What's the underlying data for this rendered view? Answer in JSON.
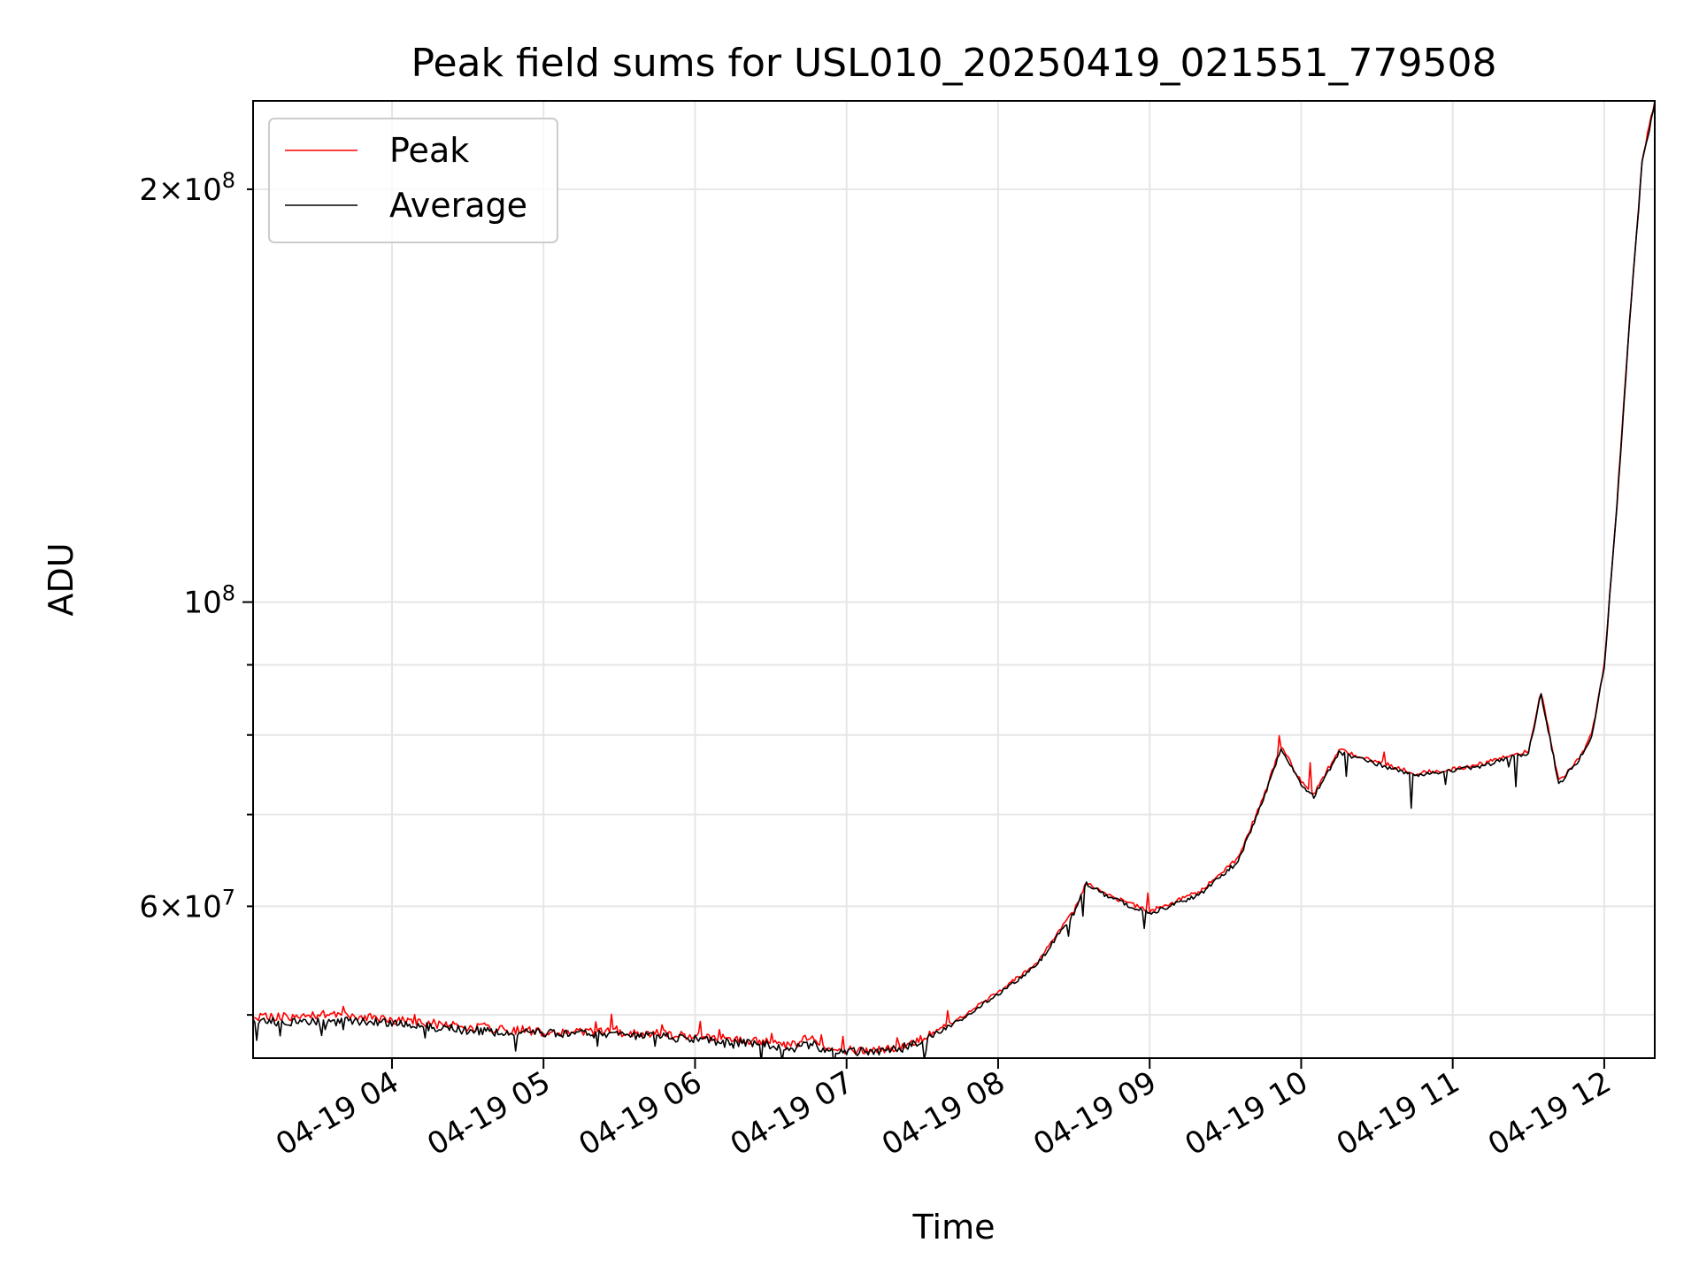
{
  "chart_data": {
    "type": "line",
    "title": "Peak field sums for USL010_20250419_021551_779508",
    "xlabel": "Time",
    "ylabel": "ADU",
    "yscale": "log",
    "grid": true,
    "legend_position": "top-left",
    "x_range": [
      "2025-04-19 03:05",
      "2025-04-19 12:20"
    ],
    "y_range": [
      46500000,
      232000000
    ],
    "x_ticks": [
      {
        "t": "2025-04-19 04:00",
        "label": "04-19 04"
      },
      {
        "t": "2025-04-19 05:00",
        "label": "04-19 05"
      },
      {
        "t": "2025-04-19 06:00",
        "label": "04-19 06"
      },
      {
        "t": "2025-04-19 07:00",
        "label": "04-19 07"
      },
      {
        "t": "2025-04-19 08:00",
        "label": "04-19 08"
      },
      {
        "t": "2025-04-19 09:00",
        "label": "04-19 09"
      },
      {
        "t": "2025-04-19 10:00",
        "label": "04-19 10"
      },
      {
        "t": "2025-04-19 11:00",
        "label": "04-19 11"
      },
      {
        "t": "2025-04-19 12:00",
        "label": "04-19 12"
      }
    ],
    "y_ticks_major": [
      {
        "v": 100000000,
        "base": "10",
        "exp": "8"
      }
    ],
    "y_ticks_minor": [
      {
        "v": 50000000,
        "mant": "",
        "exp": ""
      },
      {
        "v": 60000000,
        "mant": "6",
        "exp": "7"
      },
      {
        "v": 70000000,
        "mant": "",
        "exp": ""
      },
      {
        "v": 80000000,
        "mant": "",
        "exp": ""
      },
      {
        "v": 90000000,
        "mant": "",
        "exp": ""
      },
      {
        "v": 200000000,
        "mant": "2",
        "exp": "8"
      }
    ],
    "series": [
      {
        "name": "Peak",
        "color": "#ff0000",
        "points": [
          [
            "2025-04-19 03:05",
            49800000.0
          ],
          [
            "2025-04-19 03:20",
            49800000.0
          ],
          [
            "2025-04-19 03:30",
            50000000.0
          ],
          [
            "2025-04-19 03:45",
            49900000.0
          ],
          [
            "2025-04-19 04:00",
            49600000.0
          ],
          [
            "2025-04-19 04:20",
            49200000.0
          ],
          [
            "2025-04-19 04:40",
            48800000.0
          ],
          [
            "2025-04-19 05:00",
            48600000.0
          ],
          [
            "2025-04-19 05:20",
            48600000.0
          ],
          [
            "2025-04-19 05:40",
            48500000.0
          ],
          [
            "2025-04-19 06:00",
            48200000.0
          ],
          [
            "2025-04-19 06:20",
            47900000.0
          ],
          [
            "2025-04-19 06:40",
            47500000.0
          ],
          [
            "2025-04-19 06:45",
            48200000.0
          ],
          [
            "2025-04-19 06:50",
            47300000.0
          ],
          [
            "2025-04-19 07:00",
            47100000.0
          ],
          [
            "2025-04-19 07:10",
            47100000.0
          ],
          [
            "2025-04-19 07:20",
            47300000.0
          ],
          [
            "2025-04-19 07:30",
            48000000.0
          ],
          [
            "2025-04-19 07:45",
            49800000.0
          ],
          [
            "2025-04-19 08:00",
            52000000.0
          ],
          [
            "2025-04-19 08:15",
            54500000.0
          ],
          [
            "2025-04-19 08:30",
            59500000.0
          ],
          [
            "2025-04-19 08:35",
            62500000.0
          ],
          [
            "2025-04-19 08:45",
            61000000.0
          ],
          [
            "2025-04-19 09:00",
            59500000.0
          ],
          [
            "2025-04-19 09:20",
            61500000.0
          ],
          [
            "2025-04-19 09:35",
            65000000.0
          ],
          [
            "2025-04-19 09:45",
            72000000.0
          ],
          [
            "2025-04-19 09:52",
            78500000.0
          ],
          [
            "2025-04-19 10:00",
            74000000.0
          ],
          [
            "2025-04-19 10:05",
            72500000.0
          ],
          [
            "2025-04-19 10:15",
            78000000.0
          ],
          [
            "2025-04-19 10:30",
            76500000.0
          ],
          [
            "2025-04-19 10:45",
            75000000.0
          ],
          [
            "2025-04-19 11:00",
            75500000.0
          ],
          [
            "2025-04-19 11:15",
            76500000.0
          ],
          [
            "2025-04-19 11:30",
            78000000.0
          ],
          [
            "2025-04-19 11:35",
            86000000.0
          ],
          [
            "2025-04-19 11:42",
            74000000.0
          ],
          [
            "2025-04-19 11:50",
            77000000.0
          ],
          [
            "2025-04-19 11:55",
            80000000.0
          ],
          [
            "2025-04-19 12:00",
            90000000.0
          ],
          [
            "2025-04-19 12:05",
            118000000.0
          ],
          [
            "2025-04-19 12:10",
            160000000.0
          ],
          [
            "2025-04-19 12:15",
            210000000.0
          ],
          [
            "2025-04-19 12:20",
            232000000.0
          ]
        ]
      },
      {
        "name": "Average",
        "color": "#000000",
        "points": [
          [
            "2025-04-19 03:05",
            49500000.0
          ],
          [
            "2025-04-19 03:20",
            49400000.0
          ],
          [
            "2025-04-19 03:30",
            49400000.0
          ],
          [
            "2025-04-19 03:45",
            49500000.0
          ],
          [
            "2025-04-19 04:00",
            49300000.0
          ],
          [
            "2025-04-19 04:20",
            48900000.0
          ],
          [
            "2025-04-19 04:40",
            48600000.0
          ],
          [
            "2025-04-19 05:00",
            48500000.0
          ],
          [
            "2025-04-19 05:20",
            48400000.0
          ],
          [
            "2025-04-19 05:40",
            48300000.0
          ],
          [
            "2025-04-19 06:00",
            48000000.0
          ],
          [
            "2025-04-19 06:20",
            47700000.0
          ],
          [
            "2025-04-19 06:40",
            47300000.0
          ],
          [
            "2025-04-19 06:45",
            48000000.0
          ],
          [
            "2025-04-19 06:50",
            47200000.0
          ],
          [
            "2025-04-19 07:00",
            47000000.0
          ],
          [
            "2025-04-19 07:10",
            47000000.0
          ],
          [
            "2025-04-19 07:20",
            47200000.0
          ],
          [
            "2025-04-19 07:30",
            47800000.0
          ],
          [
            "2025-04-19 07:45",
            49600000.0
          ],
          [
            "2025-04-19 08:00",
            51800000.0
          ],
          [
            "2025-04-19 08:15",
            54300000.0
          ],
          [
            "2025-04-19 08:30",
            59300000.0
          ],
          [
            "2025-04-19 08:35",
            62300000.0
          ],
          [
            "2025-04-19 08:45",
            60800000.0
          ],
          [
            "2025-04-19 09:00",
            59300000.0
          ],
          [
            "2025-04-19 09:20",
            61200000.0
          ],
          [
            "2025-04-19 09:35",
            64700000.0
          ],
          [
            "2025-04-19 09:45",
            71700000.0
          ],
          [
            "2025-04-19 09:52",
            78200000.0
          ],
          [
            "2025-04-19 10:00",
            73700000.0
          ],
          [
            "2025-04-19 10:05",
            72200000.0
          ],
          [
            "2025-04-19 10:15",
            77700000.0
          ],
          [
            "2025-04-19 10:30",
            76200000.0
          ],
          [
            "2025-04-19 10:45",
            74800000.0
          ],
          [
            "2025-04-19 11:00",
            75300000.0
          ],
          [
            "2025-04-19 11:15",
            76200000.0
          ],
          [
            "2025-04-19 11:30",
            77700000.0
          ],
          [
            "2025-04-19 11:35",
            85700000.0
          ],
          [
            "2025-04-19 11:42",
            73700000.0
          ],
          [
            "2025-04-19 11:50",
            76700000.0
          ],
          [
            "2025-04-19 11:55",
            79700000.0
          ],
          [
            "2025-04-19 12:00",
            89700000.0
          ],
          [
            "2025-04-19 12:05",
            117500000.0
          ],
          [
            "2025-04-19 12:10",
            159500000.0
          ],
          [
            "2025-04-19 12:15",
            209000000.0
          ],
          [
            "2025-04-19 12:20",
            231000000.0
          ]
        ]
      }
    ]
  }
}
